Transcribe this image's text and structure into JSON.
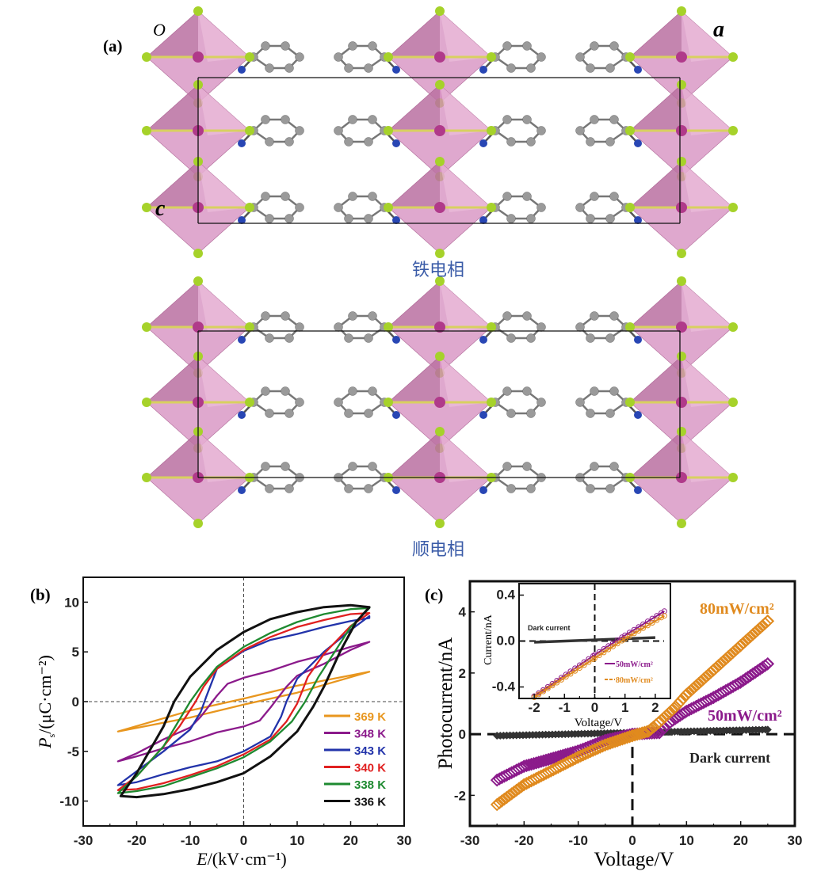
{
  "panel_a": {
    "label": "(a)",
    "axis_origin": "O",
    "axis_a": "a",
    "axis_c": "c",
    "phase_ferroelectric": "铁电相",
    "phase_paraelectric": "顺电相",
    "colors": {
      "octahedron": "#d48bbd",
      "halide": "#a6d22a",
      "carbon": "#9a9a9a",
      "nitrogen": "#2846b4"
    }
  },
  "chart_data": [
    {
      "type": "line",
      "panel_label": "(b)",
      "xlabel_symbol": "E",
      "xlabel_unit": "/(kV·cm⁻¹)",
      "ylabel_symbol": "P",
      "ylabel_sub": "s",
      "ylabel_unit": "/(μC·cm⁻²)",
      "xlim": [
        -30,
        30
      ],
      "ylim": [
        -12.5,
        12.5
      ],
      "xticks": [
        -30,
        -20,
        -10,
        0,
        10,
        20,
        30
      ],
      "yticks": [
        -10,
        -5,
        0,
        5,
        10
      ],
      "legend_position": "bottom-right",
      "series": [
        {
          "name": "369 K",
          "color": "#e8961e",
          "upper": [
            [
              23.5,
              3.0
            ],
            [
              10,
              1.6
            ],
            [
              0,
              0.3
            ],
            [
              -10,
              -0.9
            ],
            [
              -23.5,
              -3.0
            ]
          ],
          "lower": [
            [
              -23.5,
              -3.0
            ],
            [
              -10,
              -1.6
            ],
            [
              0,
              -0.3
            ],
            [
              10,
              0.9
            ],
            [
              23.5,
              3.0
            ]
          ]
        },
        {
          "name": "348 K",
          "color": "#8b1a8b",
          "upper": [
            [
              23.5,
              6.0
            ],
            [
              20,
              5.5
            ],
            [
              15,
              4.7
            ],
            [
              10,
              4.0
            ],
            [
              5,
              3.1
            ],
            [
              0,
              2.4
            ],
            [
              -3,
              1.8
            ],
            [
              -5,
              0.6
            ],
            [
              -8,
              -1.5
            ],
            [
              -10,
              -2.6
            ],
            [
              -15,
              -3.8
            ],
            [
              -20,
              -5.2
            ],
            [
              -23.5,
              -6.0
            ]
          ],
          "lower": [
            [
              -23.5,
              -6.0
            ],
            [
              -20,
              -5.5
            ],
            [
              -15,
              -4.7
            ],
            [
              -10,
              -4.0
            ],
            [
              -5,
              -3.1
            ],
            [
              0,
              -2.5
            ],
            [
              3,
              -1.9
            ],
            [
              5,
              -0.6
            ],
            [
              8,
              1.5
            ],
            [
              10,
              2.6
            ],
            [
              15,
              3.8
            ],
            [
              20,
              5.2
            ],
            [
              23.5,
              6.0
            ]
          ]
        },
        {
          "name": "343 K",
          "color": "#2233aa",
          "upper": [
            [
              23.5,
              8.4
            ],
            [
              20,
              8.1
            ],
            [
              15,
              7.5
            ],
            [
              10,
              6.8
            ],
            [
              5,
              6.2
            ],
            [
              0,
              5.1
            ],
            [
              -5,
              3.3
            ],
            [
              -7,
              0.5
            ],
            [
              -8,
              -1.0
            ],
            [
              -10,
              -2.8
            ],
            [
              -15,
              -5.0
            ],
            [
              -20,
              -7.0
            ],
            [
              -23.5,
              -8.4
            ]
          ],
          "lower": [
            [
              -23.5,
              -8.4
            ],
            [
              -20,
              -8.1
            ],
            [
              -15,
              -7.3
            ],
            [
              -10,
              -6.6
            ],
            [
              -5,
              -6.0
            ],
            [
              0,
              -5.0
            ],
            [
              5,
              -3.5
            ],
            [
              7,
              -1.5
            ],
            [
              8,
              0.0
            ],
            [
              10,
              2.3
            ],
            [
              15,
              5.0
            ],
            [
              20,
              7.2
            ],
            [
              23.5,
              8.6
            ]
          ]
        },
        {
          "name": "340 K",
          "color": "#e02020",
          "upper": [
            [
              23.5,
              8.9
            ],
            [
              20,
              8.8
            ],
            [
              15,
              8.2
            ],
            [
              10,
              7.5
            ],
            [
              5,
              6.5
            ],
            [
              0,
              5.2
            ],
            [
              -5,
              3.3
            ],
            [
              -7.5,
              1.5
            ],
            [
              -9,
              0.0
            ],
            [
              -12,
              -2.5
            ],
            [
              -15,
              -4.5
            ],
            [
              -20,
              -7.5
            ],
            [
              -23.5,
              -8.9
            ]
          ],
          "lower": [
            [
              -23.5,
              -8.9
            ],
            [
              -20,
              -8.8
            ],
            [
              -15,
              -8.2
            ],
            [
              -10,
              -7.4
            ],
            [
              -5,
              -6.5
            ],
            [
              0,
              -5.3
            ],
            [
              5,
              -3.8
            ],
            [
              8,
              -2.0
            ],
            [
              10,
              -0.2
            ],
            [
              12,
              2.5
            ],
            [
              15,
              4.8
            ],
            [
              20,
              7.6
            ],
            [
              23.5,
              8.9
            ]
          ]
        },
        {
          "name": "338 K",
          "color": "#1e8a30",
          "upper": [
            [
              23.5,
              9.4
            ],
            [
              20,
              9.3
            ],
            [
              15,
              8.8
            ],
            [
              10,
              8.0
            ],
            [
              5,
              6.9
            ],
            [
              0,
              5.5
            ],
            [
              -5,
              3.5
            ],
            [
              -8,
              1.5
            ],
            [
              -10,
              0.0
            ],
            [
              -12,
              -1.8
            ],
            [
              -15,
              -4.5
            ],
            [
              -20,
              -7.5
            ],
            [
              -23.5,
              -9.2
            ]
          ],
          "lower": [
            [
              -23.5,
              -9.2
            ],
            [
              -20,
              -9.0
            ],
            [
              -15,
              -8.5
            ],
            [
              -10,
              -7.6
            ],
            [
              -5,
              -6.7
            ],
            [
              0,
              -5.6
            ],
            [
              5,
              -4.0
            ],
            [
              9,
              -2.0
            ],
            [
              11.5,
              0.0
            ],
            [
              14,
              2.5
            ],
            [
              17,
              5.0
            ],
            [
              20,
              7.5
            ],
            [
              23.5,
              9.4
            ]
          ]
        },
        {
          "name": "336 K",
          "color": "#111111",
          "upper": [
            [
              23.5,
              9.5
            ],
            [
              20,
              9.7
            ],
            [
              15,
              9.5
            ],
            [
              10,
              9.0
            ],
            [
              5,
              8.3
            ],
            [
              0,
              7.0
            ],
            [
              -5,
              5.2
            ],
            [
              -10,
              2.5
            ],
            [
              -13,
              0.0
            ],
            [
              -15,
              -2.5
            ],
            [
              -20,
              -7.2
            ],
            [
              -23,
              -9.5
            ]
          ],
          "lower": [
            [
              -23,
              -9.5
            ],
            [
              -20,
              -9.6
            ],
            [
              -15,
              -9.3
            ],
            [
              -10,
              -8.8
            ],
            [
              -5,
              -8.1
            ],
            [
              0,
              -7.2
            ],
            [
              5,
              -5.5
            ],
            [
              10,
              -3.0
            ],
            [
              13,
              -0.5
            ],
            [
              15,
              1.5
            ],
            [
              18,
              5.0
            ],
            [
              21,
              8.0
            ],
            [
              23.5,
              9.5
            ]
          ]
        }
      ]
    },
    {
      "type": "scatter",
      "panel_label": "(c)",
      "xlabel": "Voltage/V",
      "ylabel": "Photocurrent/nA",
      "xlim": [
        -30,
        30
      ],
      "ylim": [
        -3,
        5
      ],
      "xticks": [
        -30,
        -20,
        -10,
        0,
        10,
        20,
        30
      ],
      "yticks": [
        -2,
        0,
        2,
        4
      ],
      "series": [
        {
          "name": "80mW/cm²",
          "color": "#e08a1e",
          "marker": "open-diamond",
          "points": [
            [
              -25,
              -2.3
            ],
            [
              -20,
              -1.65
            ],
            [
              -10,
              -0.75
            ],
            [
              -5,
              -0.35
            ],
            [
              0,
              -0.05
            ],
            [
              3,
              0.1
            ],
            [
              5,
              0.4
            ],
            [
              8,
              0.9
            ],
            [
              10,
              1.3
            ],
            [
              15,
              2.1
            ],
            [
              20,
              2.9
            ],
            [
              25,
              3.7
            ]
          ]
        },
        {
          "name": "50mW/cm²",
          "color": "#8b1a8b",
          "marker": "open-diamond",
          "points": [
            [
              -25,
              -1.5
            ],
            [
              -20,
              -1.05
            ],
            [
              -10,
              -0.55
            ],
            [
              -5,
              -0.2
            ],
            [
              0,
              0.0
            ],
            [
              5,
              0.05
            ],
            [
              7,
              0.4
            ],
            [
              10,
              0.75
            ],
            [
              15,
              1.2
            ],
            [
              20,
              1.7
            ],
            [
              25,
              2.3
            ]
          ]
        },
        {
          "name": "Dark current",
          "color": "#333333",
          "marker": "filled-diamond",
          "points": [
            [
              -25,
              -0.05
            ],
            [
              0,
              0.05
            ],
            [
              25,
              0.15
            ]
          ]
        }
      ],
      "annotations": {
        "label_80": "80mW/cm²",
        "label_50": "50mW/cm²",
        "label_dark": "Dark current"
      },
      "inset": {
        "xlabel": "Voltage/V",
        "ylabel": "Current/nA",
        "xlim": [
          -2.5,
          2.5
        ],
        "ylim": [
          -0.5,
          0.5
        ],
        "xticks": [
          -2,
          -1,
          0,
          1,
          2
        ],
        "yticks": [
          -0.4,
          0.0,
          0.4
        ],
        "ytick_labels": [
          "-0.4",
          "0.0",
          "0.4"
        ],
        "dark_label": "Dark current",
        "series": [
          {
            "name": "50mW/cm²",
            "color": "#8b1a8b",
            "points": [
              [
                -2,
                -0.48
              ],
              [
                0,
                -0.12
              ],
              [
                1,
                0.05
              ],
              [
                2.3,
                0.26
              ]
            ]
          },
          {
            "name": "80mW/cm²",
            "color": "#e08a1e",
            "points": [
              [
                -2,
                -0.49
              ],
              [
                0,
                -0.15
              ],
              [
                1,
                0.02
              ],
              [
                2.3,
                0.22
              ]
            ]
          },
          {
            "name": "Dark current",
            "color": "#333333",
            "points": [
              [
                -2,
                -0.01
              ],
              [
                2,
                0.03
              ]
            ]
          }
        ]
      }
    }
  ]
}
